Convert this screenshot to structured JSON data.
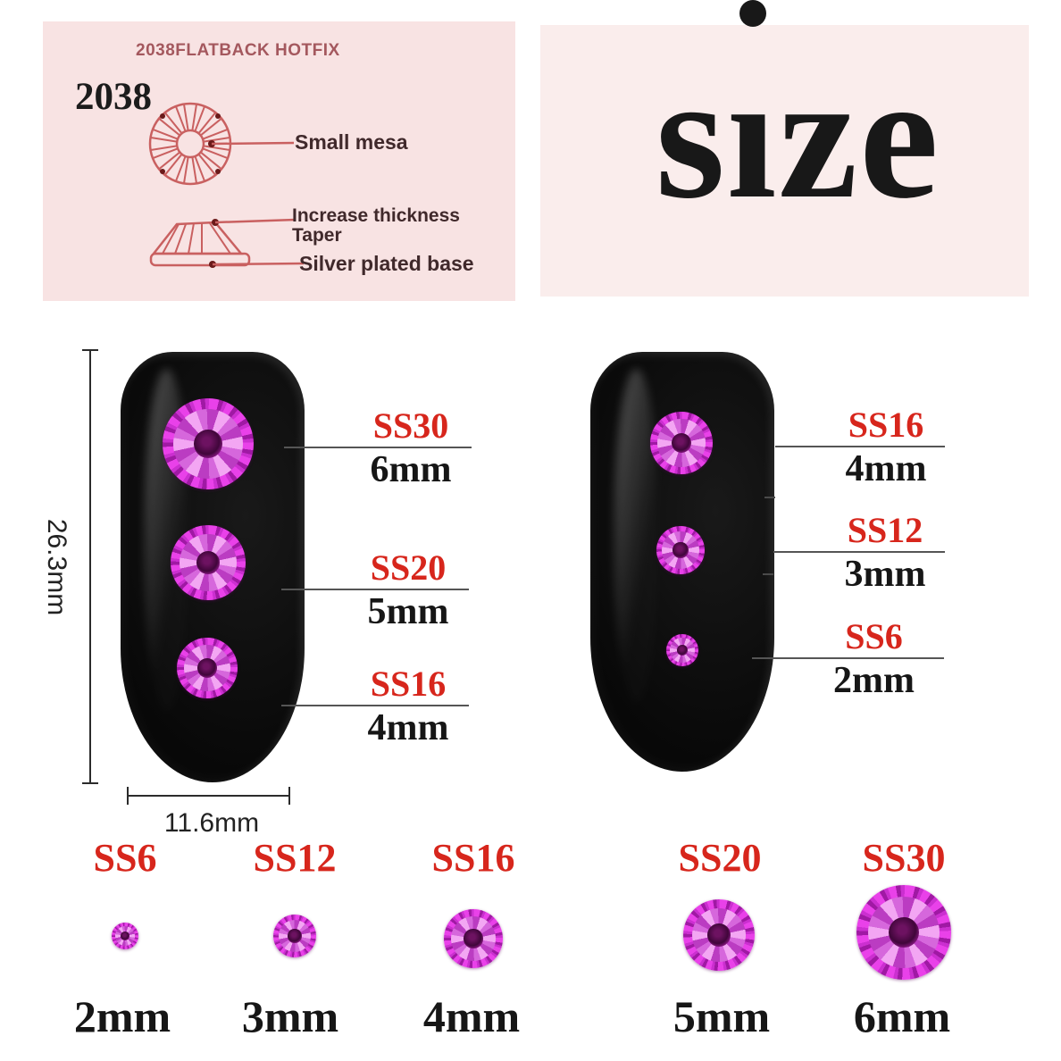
{
  "spec_panel": {
    "title": "2038FLATBACK HOTFIX",
    "model": "2038",
    "mesa_label": "Small mesa",
    "thickness_label": "Increase thickness",
    "taper_label": "Taper",
    "base_label": "Silver plated base"
  },
  "size_panel": {
    "title": "size"
  },
  "measurements": {
    "nail_length": "26.3mm",
    "nail_width": "11.6mm"
  },
  "nail_left_callouts": [
    {
      "ss": "SS30",
      "mm": "6mm"
    },
    {
      "ss": "SS20",
      "mm": "5mm"
    },
    {
      "ss": "SS16",
      "mm": "4mm"
    }
  ],
  "nail_right_callouts": [
    {
      "ss": "SS16",
      "mm": "4mm"
    },
    {
      "ss": "SS12",
      "mm": "3mm"
    },
    {
      "ss": "SS6",
      "mm": "2mm"
    }
  ],
  "size_chart": [
    {
      "ss": "SS6",
      "mm": "2mm"
    },
    {
      "ss": "SS12",
      "mm": "3mm"
    },
    {
      "ss": "SS16",
      "mm": "4mm"
    },
    {
      "ss": "SS20",
      "mm": "5mm"
    },
    {
      "ss": "SS30",
      "mm": "6mm"
    }
  ],
  "colors": {
    "accent_red": "#d7261c",
    "diagram_red": "#c96060",
    "panel_pink_left": "#f8e3e3",
    "panel_pink_right": "#faedec",
    "stone_magenta": "#cb2fd0"
  }
}
